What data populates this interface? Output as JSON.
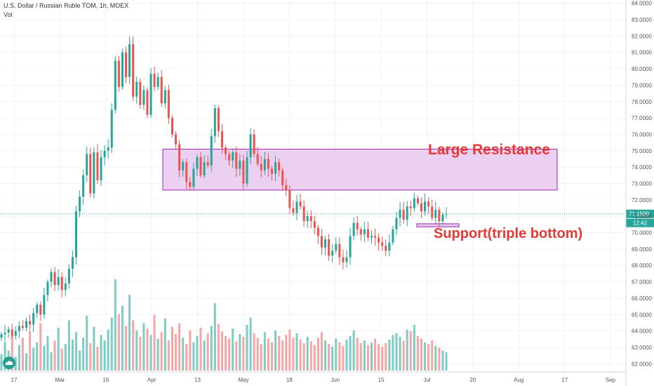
{
  "header": {
    "title": "U.S. Dollar / Russian Ruble TOM, 1h, MOEX",
    "volume_label": "Vol"
  },
  "colors": {
    "up": "#26a69a",
    "down": "#ef5350",
    "volume_up": "#80cbc4",
    "volume_down": "#f6a6a4",
    "zone_fill": "#e8c8ee",
    "zone_border": "#9c27b0",
    "annotation": "#e53935",
    "price_line": "#26a69a",
    "axis_text": "#555555"
  },
  "chart_data": {
    "type": "candlestick",
    "ylim": [
      61.5,
      84.2
    ],
    "y_ticks": [
      "62.0000",
      "63.0000",
      "64.0000",
      "65.0000",
      "66.0000",
      "67.0000",
      "68.0000",
      "69.0000",
      "70.0000",
      "71.0000",
      "72.0000",
      "73.0000",
      "74.0000",
      "75.0000",
      "76.0000",
      "77.0000",
      "78.0000",
      "79.0000",
      "80.0000",
      "81.0000",
      "82.0000",
      "83.0000",
      "84.0000"
    ],
    "x_tick_labels": [
      "17",
      "Mar",
      "16",
      "Apr",
      "13",
      "May",
      "18",
      "Jun",
      "15",
      "Jul",
      "20",
      "Aug",
      "17",
      "Sep"
    ],
    "last_price": "71.1500",
    "countdown": "12:42",
    "series": [
      {
        "name": "",
        "close_path": [
          63.8,
          63.9,
          64.1,
          63.7,
          64.0,
          64.3,
          64.2,
          64.6,
          64.4,
          65.1,
          65.6,
          65.0,
          66.2,
          67.0,
          67.6,
          66.8,
          67.3,
          66.5,
          66.9,
          67.8,
          68.5,
          71.3,
          72.2,
          73.5,
          74.8,
          72.4,
          74.9,
          73.2,
          74.6,
          75.0,
          75.2,
          77.5,
          80.5,
          78.9,
          81.0,
          79.5,
          81.5,
          78.3,
          79.2,
          77.8,
          78.7,
          77.2,
          79.7,
          78.9,
          79.5,
          77.9,
          78.7,
          77.0,
          76.0,
          75.4,
          73.8,
          74.3,
          73.1,
          72.8,
          73.9,
          74.6,
          73.5,
          74.3,
          74.1,
          75.9,
          77.6,
          76.2,
          75.2,
          74.8,
          74.4,
          74.9,
          73.9,
          74.4,
          73.0,
          74.6,
          76.0,
          74.8,
          74.2,
          73.8,
          74.5,
          73.9,
          73.6,
          74.3,
          73.8,
          72.9,
          72.6,
          71.5,
          71.2,
          71.9,
          71.6,
          70.7,
          71.0,
          70.7,
          70.3,
          69.8,
          69.1,
          69.6,
          68.6,
          68.9,
          69.3,
          68.5,
          68.2,
          68.5,
          69.8,
          70.6,
          70.2,
          69.9,
          70.2,
          69.7,
          69.8,
          69.7,
          69.4,
          69.2,
          68.9,
          69.4,
          70.2,
          70.9,
          71.4,
          70.8,
          71.6,
          71.5,
          72.1,
          71.8,
          71.3,
          71.9,
          71.6,
          70.9,
          71.4,
          70.7,
          71.1,
          71.15
        ]
      }
    ],
    "annotations": [
      {
        "text": "Large Resistance",
        "y_range": [
          72.6,
          75.1
        ]
      },
      {
        "text": "Support(triple bottom)",
        "y_range": [
          70.4,
          70.5
        ]
      }
    ],
    "grid": true
  },
  "volume": {
    "bars": [
      0.18,
      0.32,
      0.22,
      0.41,
      0.15,
      0.28,
      0.36,
      0.19,
      0.44,
      0.25,
      0.31,
      0.52,
      0.27,
      0.38,
      0.2,
      0.33,
      0.47,
      0.24,
      0.29,
      0.55,
      0.34,
      0.42,
      0.22,
      0.36,
      0.6,
      0.3,
      0.48,
      0.26,
      0.39,
      0.33,
      0.45,
      0.58,
      1.0,
      0.62,
      0.71,
      0.49,
      0.83,
      0.55,
      0.44,
      0.37,
      0.52,
      0.46,
      0.39,
      0.61,
      0.35,
      0.42,
      0.57,
      0.33,
      0.48,
      0.4,
      0.52,
      0.36,
      0.29,
      0.44,
      0.31,
      0.38,
      0.47,
      0.33,
      0.41,
      0.49,
      0.74,
      0.51,
      0.43,
      0.38,
      0.35,
      0.46,
      0.32,
      0.4,
      0.37,
      0.5,
      0.58,
      0.41,
      0.36,
      0.29,
      0.42,
      0.35,
      0.31,
      0.44,
      0.38,
      0.33,
      0.39,
      0.45,
      0.36,
      0.41,
      0.34,
      0.3,
      0.37,
      0.32,
      0.28,
      0.36,
      0.42,
      0.33,
      0.29,
      0.26,
      0.35,
      0.31,
      0.27,
      0.34,
      0.38,
      0.44,
      0.36,
      0.3,
      0.33,
      0.28,
      0.31,
      0.35,
      0.29,
      0.26,
      0.3,
      0.34,
      0.39,
      0.41,
      0.37,
      0.33,
      0.45,
      0.43,
      0.5,
      0.38,
      0.35,
      0.31,
      0.29,
      0.33,
      0.27,
      0.25,
      0.22,
      0.2
    ]
  }
}
